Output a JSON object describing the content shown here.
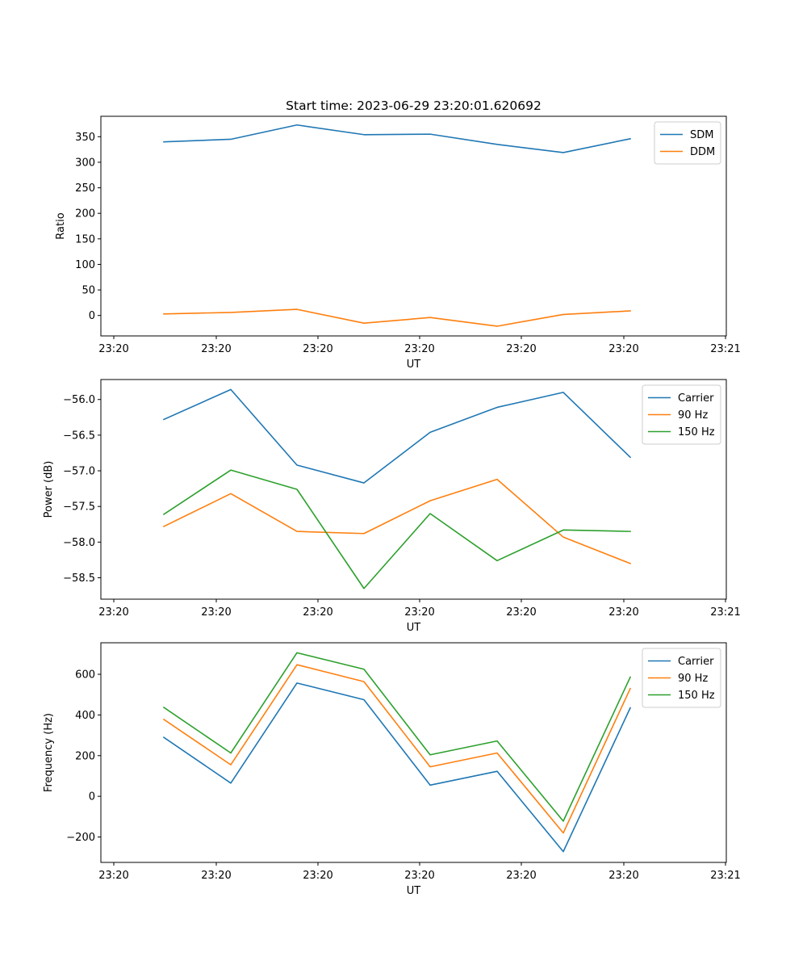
{
  "chart_data": [
    {
      "type": "line",
      "title": "Start time: 2023-06-29 23:20:01.620692",
      "xlabel": "UT",
      "ylabel": "Ratio",
      "x_tick_labels": [
        "23:20",
        "23:20",
        "23:20",
        "23:20",
        "23:20",
        "23:20",
        "23:21"
      ],
      "ylim": [
        -40,
        390
      ],
      "y_ticks": [
        0,
        50,
        100,
        150,
        200,
        250,
        300,
        350
      ],
      "y_tick_labels": [
        "0",
        "50",
        "100",
        "150",
        "200",
        "250",
        "300",
        "350"
      ],
      "legend_position": "upper right",
      "series": [
        {
          "name": "SDM",
          "color": "#1f77b4",
          "values": [
            340,
            345,
            373,
            354,
            355,
            335,
            319,
            346
          ]
        },
        {
          "name": "DDM",
          "color": "#ff7f0e",
          "values": [
            3,
            6,
            12,
            -15,
            -4,
            -21,
            2,
            9
          ]
        }
      ]
    },
    {
      "type": "line",
      "title": "",
      "xlabel": "UT",
      "ylabel": "Power (dB)",
      "x_tick_labels": [
        "23:20",
        "23:20",
        "23:20",
        "23:20",
        "23:20",
        "23:20",
        "23:21"
      ],
      "ylim": [
        -58.8,
        -55.72
      ],
      "y_ticks": [
        -58.5,
        -58.0,
        -57.5,
        -57.0,
        -56.5,
        -56.0
      ],
      "y_tick_labels": [
        "−58.5",
        "−58.0",
        "−57.5",
        "−57.0",
        "−56.5",
        "−56.0"
      ],
      "legend_position": "upper right",
      "series": [
        {
          "name": "Carrier",
          "color": "#1f77b4",
          "values": [
            -56.28,
            -55.86,
            -56.92,
            -57.17,
            -56.46,
            -56.11,
            -55.9,
            -56.81
          ]
        },
        {
          "name": "90 Hz",
          "color": "#ff7f0e",
          "values": [
            -57.78,
            -57.32,
            -57.85,
            -57.88,
            -57.42,
            -57.12,
            -57.93,
            -58.3
          ]
        },
        {
          "name": "150 Hz",
          "color": "#2ca02c",
          "values": [
            -57.61,
            -56.99,
            -57.26,
            -58.65,
            -57.6,
            -58.26,
            -57.83,
            -57.85
          ]
        }
      ]
    },
    {
      "type": "line",
      "title": "",
      "xlabel": "UT",
      "ylabel": "Frequency (Hz)",
      "x_tick_labels": [
        "23:20",
        "23:20",
        "23:20",
        "23:20",
        "23:20",
        "23:20",
        "23:21"
      ],
      "ylim": [
        -325,
        755
      ],
      "y_ticks": [
        -200,
        0,
        200,
        400,
        600
      ],
      "y_tick_labels": [
        "−200",
        "0",
        "200",
        "400",
        "600"
      ],
      "legend_position": "upper right",
      "series": [
        {
          "name": "Carrier",
          "color": "#1f77b4",
          "values": [
            290,
            65,
            557,
            475,
            55,
            123,
            -272,
            435
          ]
        },
        {
          "name": "90 Hz",
          "color": "#ff7f0e",
          "values": [
            378,
            155,
            647,
            564,
            145,
            213,
            -180,
            530
          ]
        },
        {
          "name": "150 Hz",
          "color": "#2ca02c",
          "values": [
            437,
            213,
            706,
            625,
            204,
            272,
            -122,
            586
          ]
        }
      ]
    }
  ]
}
